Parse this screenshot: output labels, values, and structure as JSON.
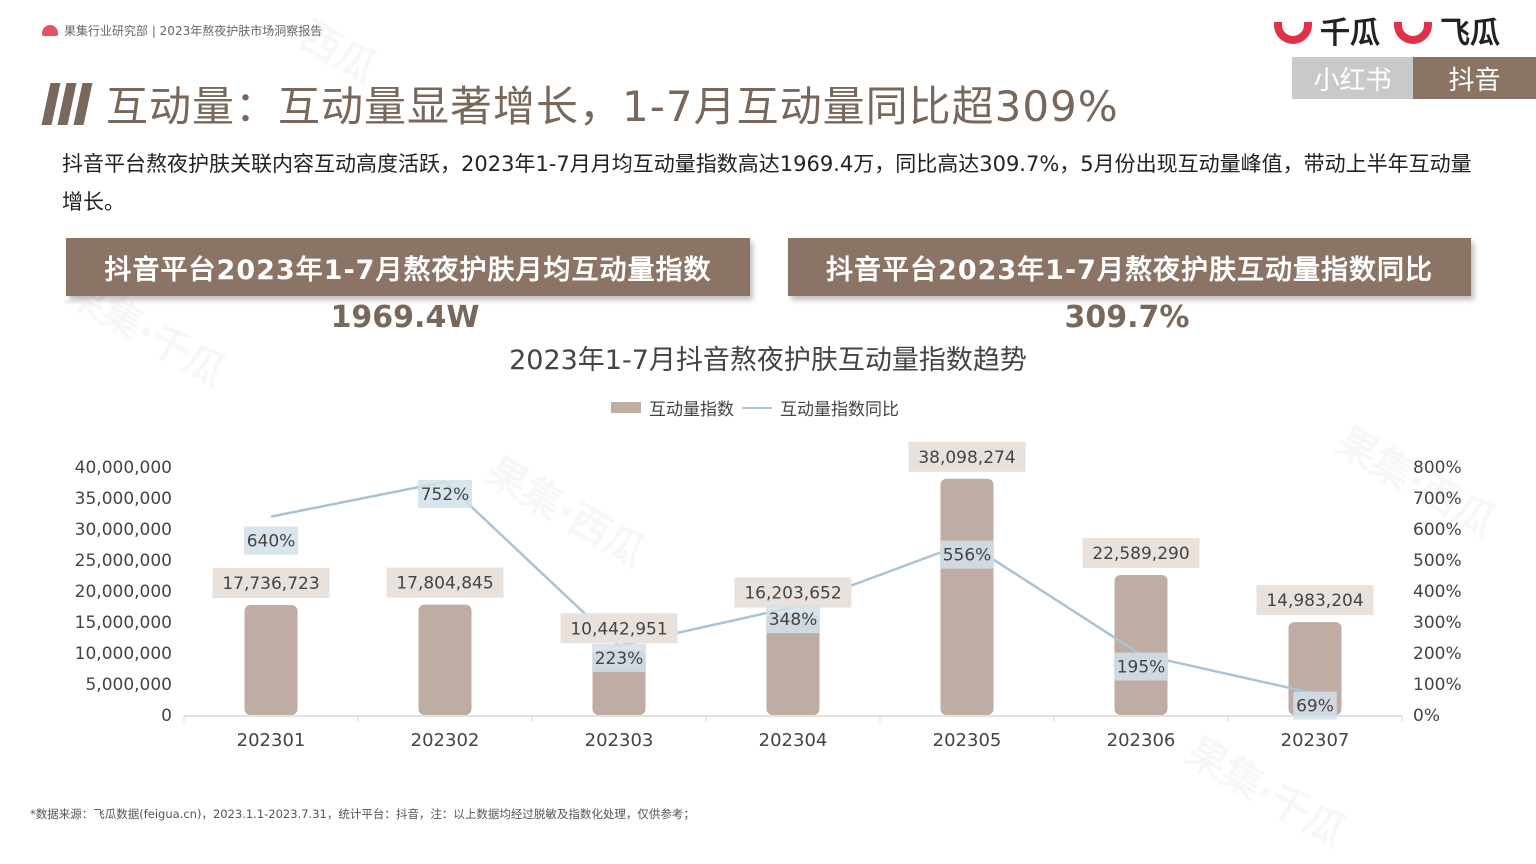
{
  "header": {
    "source": "果集行业研究部 | 2023年熬夜护肤市场洞察报告"
  },
  "logos": [
    "千瓜",
    "飞瓜"
  ],
  "platform_tabs": [
    "小红书",
    "抖音"
  ],
  "title": "互动量：互动量显著增长，1-7月互动量同比超309%",
  "summary": "抖音平台熬夜护肤关联内容互动高度活跃，2023年1-7月月均互动量指数高达1969.4万，同比高达309.7%，5月份出现互动量峰值，带动上半年互动量增长。",
  "banners": [
    {
      "label": "抖音平台2023年1-7月熬夜护肤月均互动量指数",
      "value": "1969.4W"
    },
    {
      "label": "抖音平台2023年1-7月熬夜护肤互动量指数同比",
      "value": "309.7%"
    }
  ],
  "chart_data": {
    "type": "bar",
    "title": "2023年1-7月抖音熬夜护肤互动量指数趋势",
    "categories": [
      "202301",
      "202302",
      "202303",
      "202304",
      "202305",
      "202306",
      "202307"
    ],
    "series": [
      {
        "name": "互动量指数",
        "type": "bar",
        "axis": "left",
        "color": "#bfaca2",
        "values": [
          17736723,
          17804845,
          10442951,
          16203652,
          38098274,
          22589290,
          14983204
        ],
        "labels": [
          "17,736,723",
          "17,804,845",
          "10,442,951",
          "16,203,652",
          "38,098,274",
          "22,589,290",
          "14,983,204"
        ]
      },
      {
        "name": "互动量指数同比",
        "type": "line",
        "axis": "right",
        "color": "#a9c3d7",
        "values": [
          640,
          752,
          223,
          348,
          556,
          195,
          69
        ],
        "labels": [
          "640%",
          "752%",
          "223%",
          "348%",
          "556%",
          "195%",
          "69%"
        ]
      }
    ],
    "y_left": {
      "min": 0,
      "max": 40000000,
      "ticks": [
        "0",
        "5,000,000",
        "10,000,000",
        "15,000,000",
        "20,000,000",
        "25,000,000",
        "30,000,000",
        "35,000,000",
        "40,000,000"
      ]
    },
    "y_right": {
      "min": 0,
      "max": 800,
      "ticks": [
        "0%",
        "100%",
        "200%",
        "300%",
        "400%",
        "500%",
        "600%",
        "700%",
        "800%"
      ]
    },
    "legend": "top-center",
    "grid": false
  },
  "footnote": "*数据来源：飞瓜数据(feigua.cn)，2023.1.1-2023.7.31，统计平台：抖音，注：以上数据均经过脱敏及指数化处理，仅供参考；"
}
